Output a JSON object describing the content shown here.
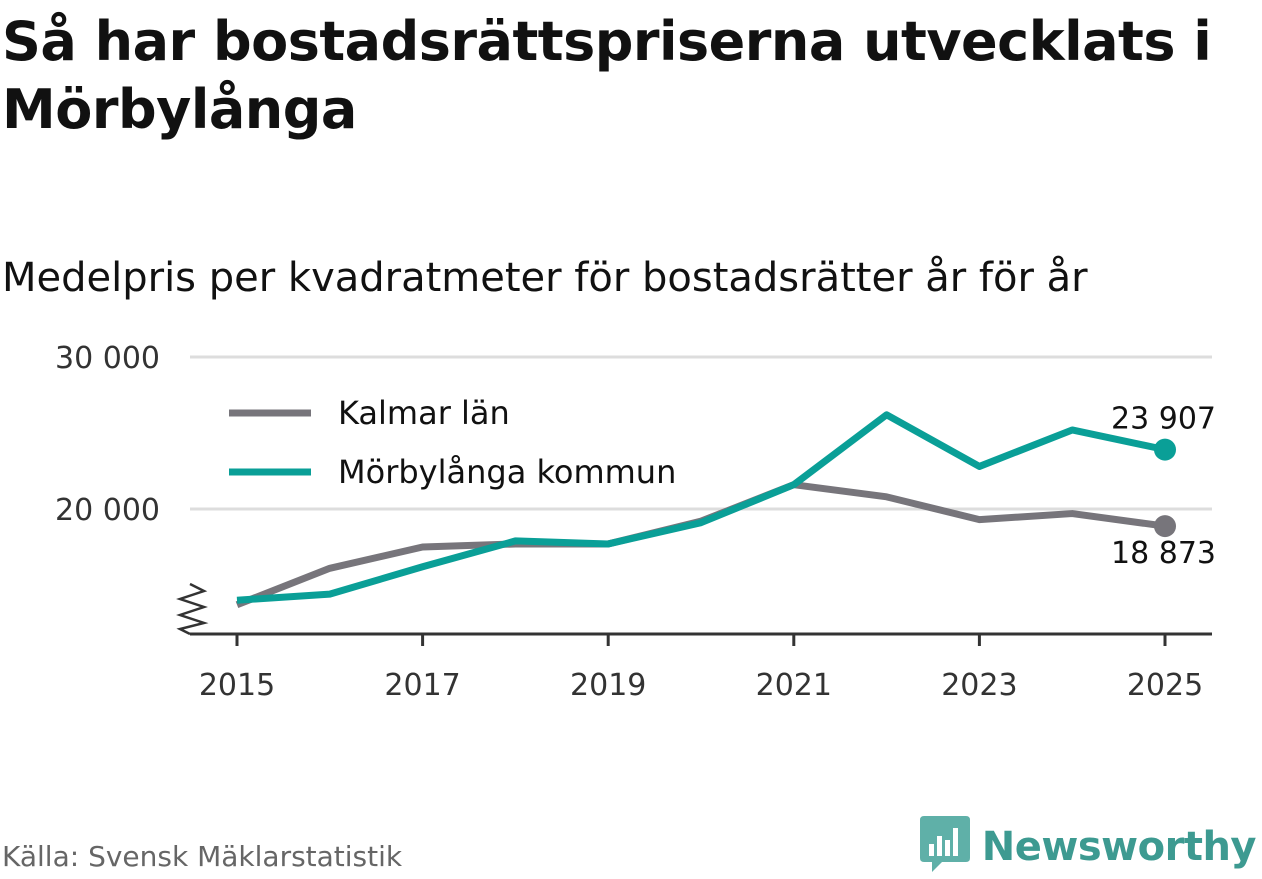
{
  "title": "Så har bostadsrättspriserna utvecklats i Mörbylånga",
  "subtitle": "Medelpris per kvadratmeter för bostadsrätter år för år",
  "source": "Källa: Svensk Mäklarstatistik",
  "brand": {
    "name": "Newsworthy",
    "icon": "newsworthy-logo-icon"
  },
  "colors": {
    "kalmar": "#77757b",
    "morbylanga": "#0a9f97",
    "grid": "#dddddd",
    "axis": "#333333"
  },
  "chart_data": {
    "type": "line",
    "title": "Medelpris per kvadratmeter för bostadsrätter år för år",
    "xlabel": "",
    "ylabel": "",
    "x": [
      2015,
      2016,
      2017,
      2018,
      2019,
      2020,
      2021,
      2022,
      2023,
      2024,
      2025
    ],
    "xticks": [
      "2015",
      "2017",
      "2019",
      "2021",
      "2023",
      "2025"
    ],
    "yticks": [
      "20 000",
      "30 000"
    ],
    "ylim": [
      12000,
      30000
    ],
    "axis_break": true,
    "grid": true,
    "legend_position": "top-left",
    "series": [
      {
        "name": "Kalmar län",
        "values": [
          13700,
          16100,
          17500,
          17700,
          17700,
          19200,
          21600,
          20800,
          19300,
          19700,
          18873
        ],
        "end_label": "18 873"
      },
      {
        "name": "Mörbylånga kommun",
        "values": [
          14000,
          14400,
          16200,
          17900,
          17700,
          19100,
          21600,
          26200,
          22800,
          25200,
          23907
        ],
        "end_label": "23 907"
      }
    ]
  }
}
